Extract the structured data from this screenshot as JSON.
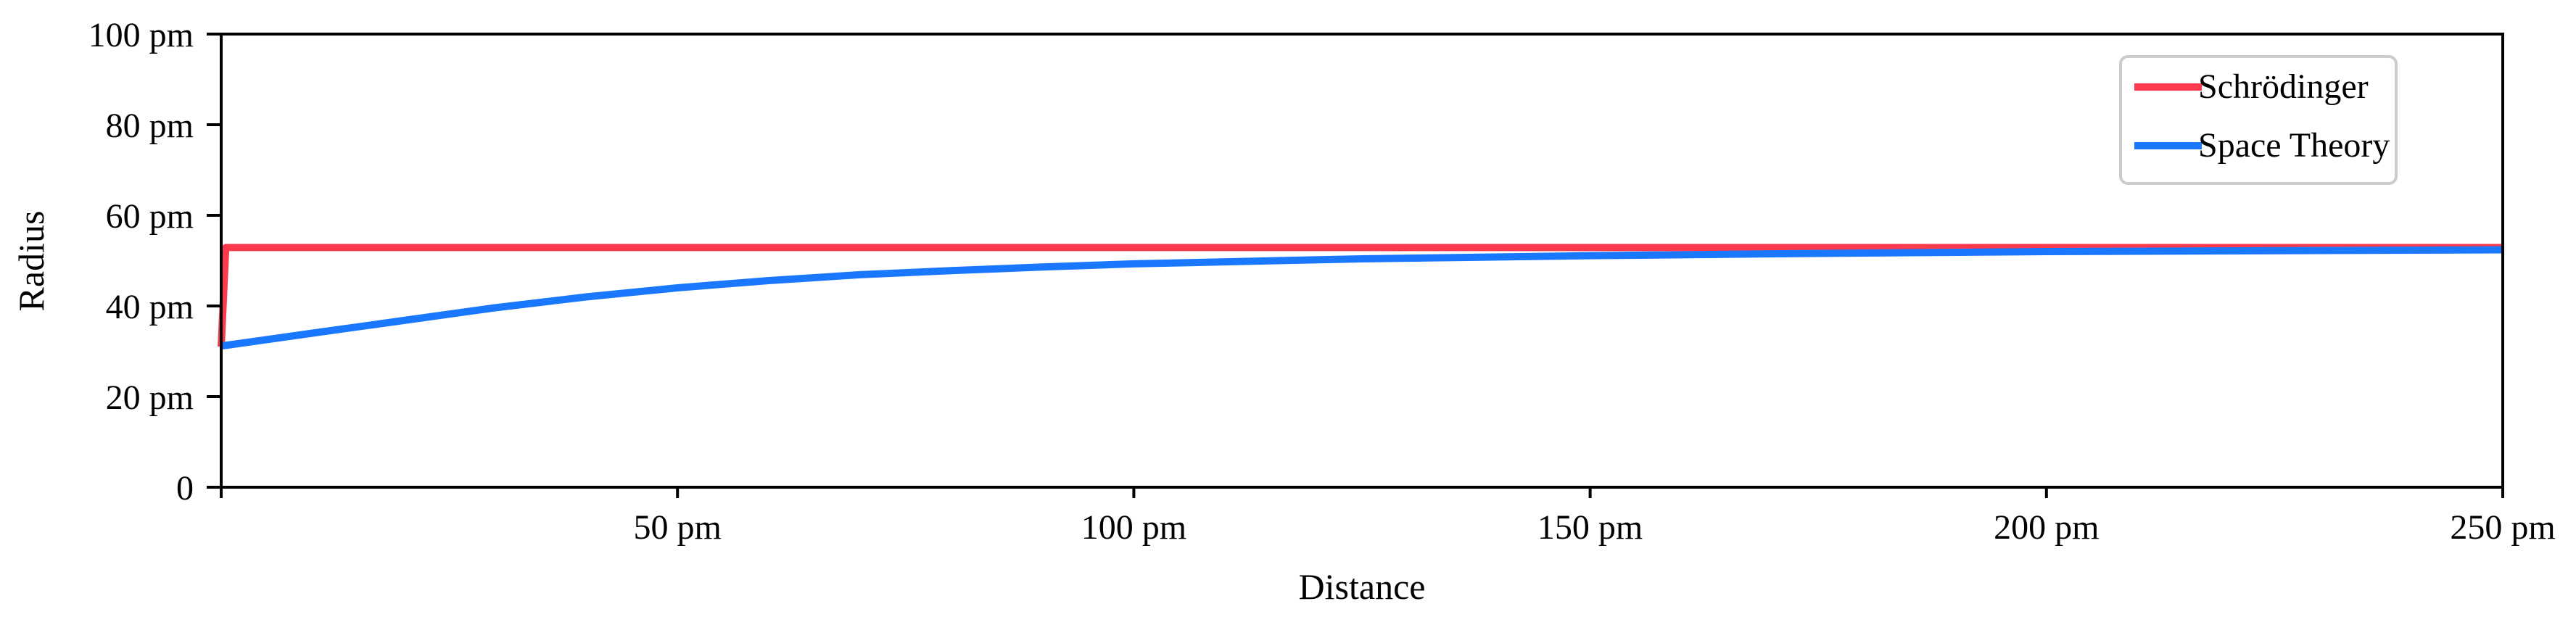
{
  "chart_data": {
    "type": "line",
    "title": "",
    "xlabel": "Distance",
    "ylabel": "Radius",
    "xlim": [
      0,
      250
    ],
    "ylim": [
      0,
      100
    ],
    "x_unit": "pm",
    "y_unit": "pm",
    "grid": false,
    "legend_position": "upper right",
    "x_ticks": [
      {
        "value": 50,
        "label": "50 pm"
      },
      {
        "value": 100,
        "label": "100 pm"
      },
      {
        "value": 150,
        "label": "150 pm"
      },
      {
        "value": 200,
        "label": "200 pm"
      },
      {
        "value": 250,
        "label": "250 pm"
      }
    ],
    "y_ticks": [
      {
        "value": 0,
        "label": "0"
      },
      {
        "value": 20,
        "label": "20 pm"
      },
      {
        "value": 40,
        "label": "40 pm"
      },
      {
        "value": 60,
        "label": "60 pm"
      },
      {
        "value": 80,
        "label": "80 pm"
      },
      {
        "value": 100,
        "label": "100 pm"
      }
    ],
    "x": [
      0,
      0.5,
      10,
      20,
      30,
      40,
      50,
      60,
      70,
      80,
      90,
      100,
      125,
      150,
      175,
      200,
      225,
      250
    ],
    "series": [
      {
        "name": "Schrödinger",
        "color": "#fc3a4e",
        "values": [
          31,
          52.9,
          52.9,
          52.9,
          52.9,
          52.9,
          52.9,
          52.9,
          52.9,
          52.9,
          52.9,
          52.9,
          52.9,
          52.9,
          52.9,
          52.9,
          52.9,
          52.9
        ]
      },
      {
        "name": "Space Theory",
        "color": "#1a78ff",
        "values": [
          31.2,
          31.3,
          34.0,
          36.8,
          39.6,
          42.0,
          44.0,
          45.6,
          46.9,
          47.8,
          48.6,
          49.3,
          50.4,
          51.1,
          51.6,
          52.0,
          52.2,
          52.4
        ]
      }
    ]
  }
}
